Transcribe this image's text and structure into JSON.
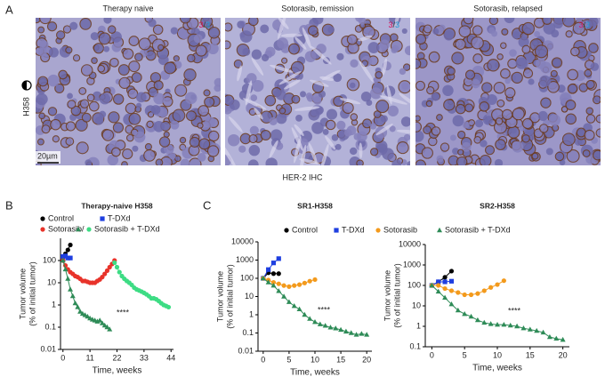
{
  "panel_labels": [
    "A",
    "B",
    "C"
  ],
  "micrographs": [
    {
      "title": "Therapy naive",
      "score": [
        "3",
        "/",
        "3"
      ]
    },
    {
      "title": "Sotorasib, remission",
      "score": [
        "3",
        "/",
        "3"
      ]
    },
    {
      "title": "Sotorasib, relapsed",
      "score": [
        "3",
        "/",
        "3"
      ]
    }
  ],
  "scale_bar": "20µm",
  "row_label": "H358",
  "caption": "HER-2 IHC",
  "chart_data": [
    {
      "type": "line",
      "title": "Therapy-naive H358",
      "xlabel": "Time, weeks",
      "ylabel": [
        "Tumor volume",
        "(% of initial tumor)"
      ],
      "yscale": "log",
      "xlim": [
        -1,
        45
      ],
      "ylim": [
        0.01,
        1000
      ],
      "xticks": [
        0,
        11,
        22,
        33,
        44
      ],
      "yticks": [
        0.01,
        0.1,
        1,
        10,
        100
      ],
      "annotation": "****",
      "legend_separator": "/",
      "series": [
        {
          "name": "Control",
          "color": "#000000",
          "marker": "circle",
          "x": [
            0,
            1,
            2,
            3
          ],
          "values": [
            100,
            200,
            300,
            500
          ]
        },
        {
          "name": "T-DXd",
          "color": "#1f3fe0",
          "marker": "square",
          "x": [
            0,
            1,
            2,
            3
          ],
          "values": [
            150,
            160,
            130,
            130
          ]
        },
        {
          "name": "Sotorasib",
          "color": "#e8332a",
          "marker": "circle",
          "x": [
            0,
            1,
            2,
            3,
            4,
            5,
            6,
            7,
            8,
            9,
            10,
            11,
            12,
            13,
            14,
            15,
            16,
            17,
            18,
            19,
            20,
            21
          ],
          "values": [
            100,
            60,
            40,
            30,
            25,
            20,
            18,
            15,
            12,
            12,
            11,
            10,
            10,
            10,
            12,
            14,
            18,
            25,
            35,
            50,
            70,
            100
          ]
        },
        {
          "name": "Sotorasib + T-DXd",
          "color": "#2e8b57",
          "marker": "triangle",
          "x": [
            0,
            1,
            2,
            3,
            4,
            5,
            6,
            7,
            8,
            9,
            10,
            11,
            12,
            13,
            14,
            15,
            16,
            17,
            18,
            19
          ],
          "values": [
            100,
            40,
            15,
            5,
            2.5,
            1.2,
            0.8,
            0.5,
            0.4,
            0.35,
            0.3,
            0.25,
            0.22,
            0.2,
            0.18,
            0.2,
            0.15,
            0.12,
            0.1,
            0.08
          ]
        },
        {
          "color": "#3ddc84",
          "marker": "circle",
          "x": [
            21,
            22,
            23,
            24,
            25,
            26,
            27,
            28,
            29,
            30,
            31,
            32,
            33,
            34,
            35,
            36,
            37,
            38,
            39,
            40,
            41,
            42,
            43
          ],
          "values": [
            80,
            50,
            30,
            20,
            15,
            12,
            10,
            8,
            6,
            5,
            4.5,
            4,
            3.5,
            3,
            2.5,
            2,
            2,
            1.8,
            1.5,
            1.2,
            1,
            0.9,
            0.8
          ]
        }
      ]
    },
    {
      "type": "line",
      "title": "SR1-H358",
      "xlabel": "Time, weeks",
      "ylabel": [
        "Tumor volume",
        "(% of initial tumor)"
      ],
      "yscale": "log",
      "xlim": [
        -1,
        21
      ],
      "ylim": [
        0.01,
        10000
      ],
      "xticks": [
        0,
        5,
        10,
        15,
        20
      ],
      "yticks": [
        0.01,
        0.1,
        1,
        10,
        100,
        1000,
        10000
      ],
      "annotation": "****",
      "series": [
        {
          "name": "Control",
          "color": "#000000",
          "marker": "circle",
          "x": [
            0,
            1,
            2,
            3
          ],
          "values": [
            100,
            200,
            180,
            180
          ]
        },
        {
          "name": "T-DXd",
          "color": "#1f3fe0",
          "marker": "square",
          "x": [
            0,
            1,
            2,
            3
          ],
          "values": [
            100,
            300,
            700,
            1200
          ]
        },
        {
          "name": "Sotorasib",
          "color": "#f39a1c",
          "marker": "circle",
          "x": [
            0,
            1,
            2,
            3,
            4,
            5,
            6,
            7,
            8,
            9,
            10
          ],
          "values": [
            100,
            80,
            60,
            50,
            40,
            35,
            40,
            45,
            55,
            70,
            85
          ]
        },
        {
          "name": "Sotorasib + T-DXd",
          "color": "#2e8b57",
          "marker": "triangle",
          "x": [
            0,
            1,
            2,
            3,
            4,
            5,
            6,
            7,
            8,
            9,
            10,
            11,
            12,
            13,
            14,
            15,
            16,
            17,
            18,
            19,
            20
          ],
          "values": [
            100,
            60,
            40,
            20,
            10,
            5,
            3,
            2,
            1,
            0.6,
            0.4,
            0.3,
            0.25,
            0.2,
            0.18,
            0.15,
            0.12,
            0.1,
            0.08,
            0.09,
            0.08
          ]
        }
      ]
    },
    {
      "type": "line",
      "title": "SR2-H358",
      "xlabel": "Time, weeks",
      "ylabel": [
        "Tumor volume",
        "(% of initial tumor)"
      ],
      "yscale": "log",
      "xlim": [
        -1,
        21
      ],
      "ylim": [
        0.1,
        10000
      ],
      "xticks": [
        0,
        5,
        10,
        15,
        20
      ],
      "yticks": [
        0.1,
        1,
        10,
        100,
        1000,
        10000
      ],
      "annotation": "****",
      "series": [
        {
          "color": "#000000",
          "marker": "circle",
          "x": [
            0,
            1,
            2,
            3
          ],
          "values": [
            100,
            150,
            250,
            500
          ]
        },
        {
          "color": "#1f3fe0",
          "marker": "square",
          "x": [
            0,
            1,
            2,
            3
          ],
          "values": [
            100,
            150,
            150,
            160
          ]
        },
        {
          "color": "#f39a1c",
          "marker": "circle",
          "x": [
            0,
            1,
            2,
            3,
            4,
            5,
            6,
            7,
            8,
            9,
            10,
            11
          ],
          "values": [
            100,
            100,
            70,
            55,
            45,
            35,
            35,
            40,
            55,
            80,
            110,
            170
          ]
        },
        {
          "color": "#2e8b57",
          "marker": "triangle",
          "x": [
            0,
            1,
            2,
            3,
            4,
            5,
            6,
            7,
            8,
            9,
            10,
            11,
            12,
            13,
            14,
            15,
            16,
            17,
            18,
            19,
            20
          ],
          "values": [
            100,
            50,
            25,
            12,
            6,
            4,
            3,
            2,
            1.5,
            1.3,
            1.2,
            1.2,
            1.1,
            1,
            0.8,
            0.7,
            0.6,
            0.5,
            0.3,
            0.25,
            0.22
          ]
        }
      ]
    }
  ]
}
